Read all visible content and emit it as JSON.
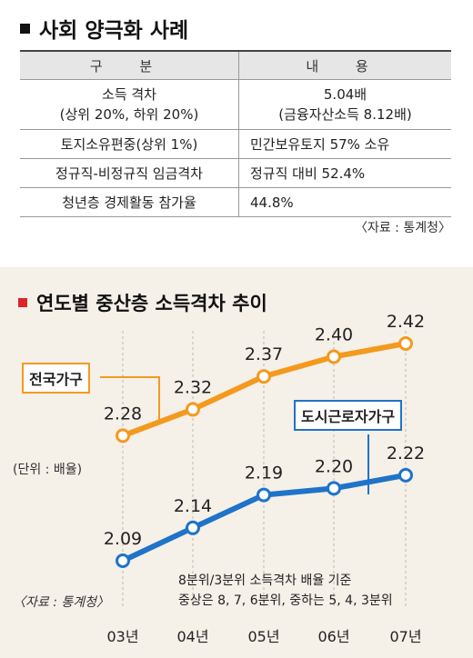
{
  "table_section": {
    "title": "사회 양극화 사례",
    "headers": [
      "구 분",
      "내 용"
    ],
    "rows": [
      {
        "label": [
          "소득 격차",
          "(상위 20%, 하위 20%)"
        ],
        "value": [
          "5.04배",
          "(금융자산소득 8.12배)"
        ]
      },
      {
        "label": [
          "토지소유편중(상위 1%)"
        ],
        "value": [
          "민간보유토지 57% 소유"
        ]
      },
      {
        "label": [
          "정규직-비정규직 임금격차"
        ],
        "value": [
          "정규직 대비 52.4%"
        ]
      },
      {
        "label": [
          "청년층 경제활동 참가율"
        ],
        "value": [
          "44.8%"
        ]
      }
    ],
    "source": "〈자료 : 통계청〉"
  },
  "chart_section": {
    "title": "연도별 중산층 소득격차 추이",
    "unit": "(단위 : 배율)",
    "source": "〈자료 : 통계청〉",
    "note_line1": "8분위/3분위 소득격차 배율 기준",
    "note_line2": "중상은 8, 7, 6분위, 중하는 5, 4, 3분위",
    "colors": {
      "national": "#f39a1e",
      "urban": "#1f73c8",
      "panel_bg": "#f5f0e8"
    }
  },
  "chart_data": {
    "type": "line",
    "categories": [
      "03년",
      "04년",
      "05년",
      "06년",
      "07년"
    ],
    "series": [
      {
        "name": "전국가구",
        "values": [
          2.28,
          2.32,
          2.37,
          2.4,
          2.42
        ]
      },
      {
        "name": "도시근로자가구",
        "values": [
          2.09,
          2.14,
          2.19,
          2.2,
          2.22
        ]
      }
    ]
  }
}
